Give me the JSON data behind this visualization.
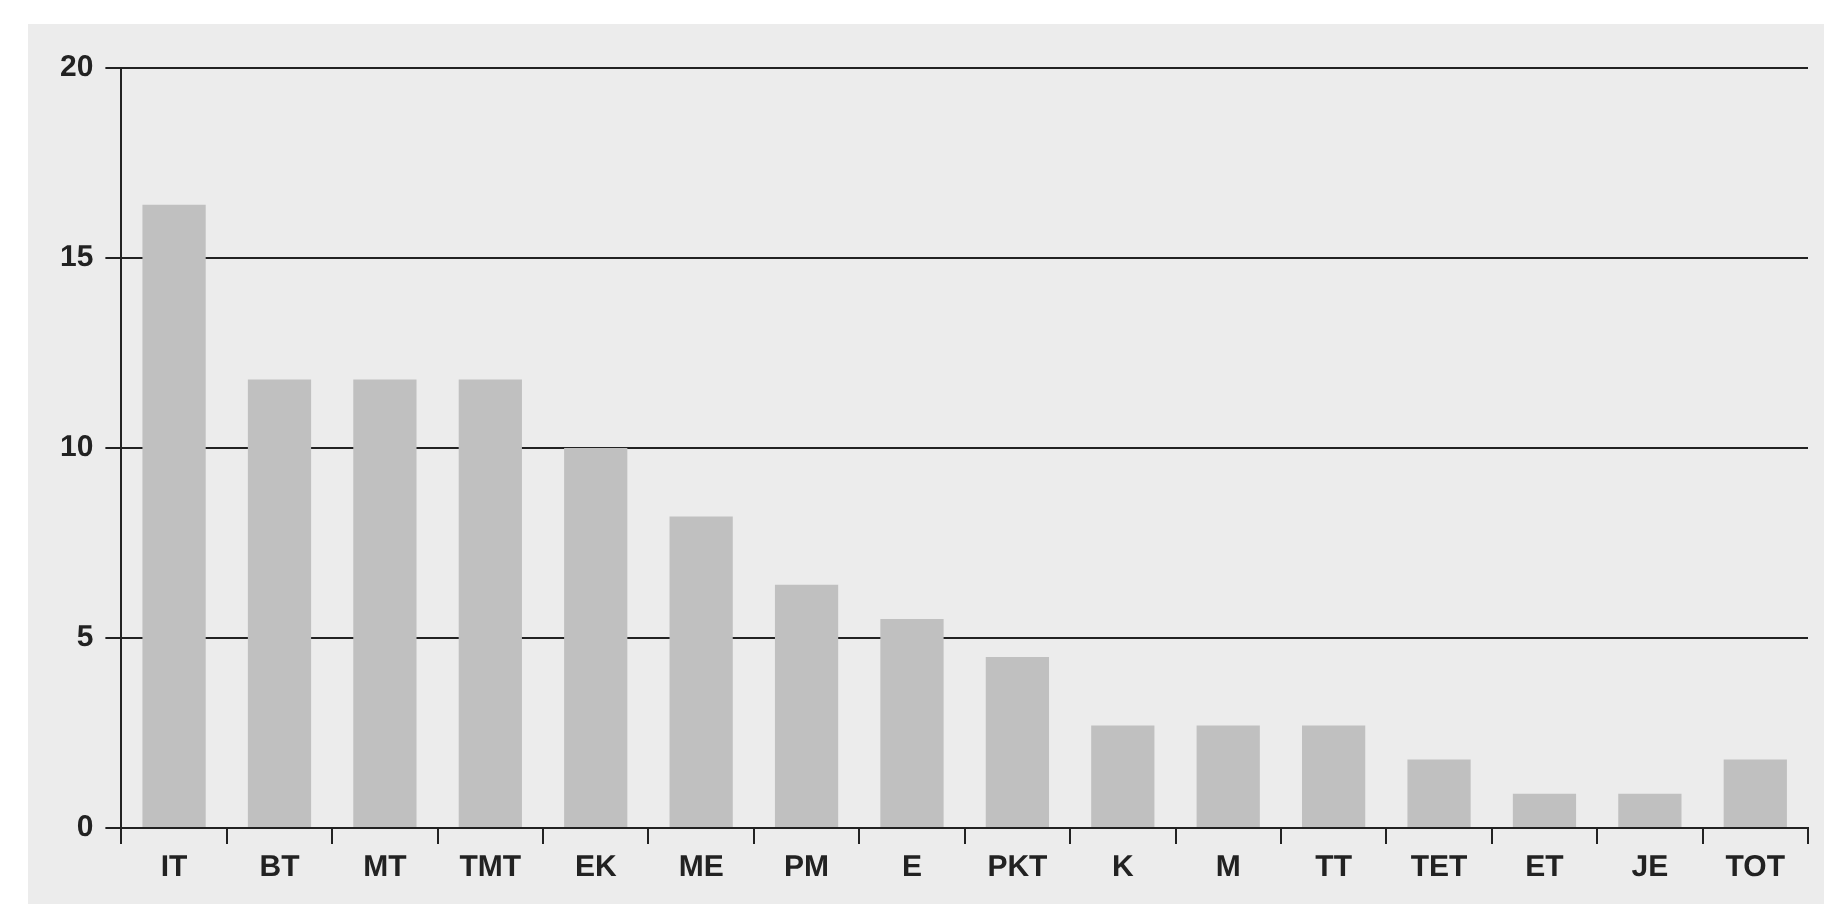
{
  "chart_data": {
    "type": "bar",
    "categories": [
      "IT",
      "BT",
      "MT",
      "TMT",
      "EK",
      "ME",
      "PM",
      "E",
      "PKT",
      "K",
      "M",
      "TT",
      "TET",
      "ET",
      "JE",
      "TOT"
    ],
    "values": [
      16.4,
      11.8,
      11.8,
      11.8,
      10.0,
      8.2,
      6.4,
      5.5,
      4.5,
      2.7,
      2.7,
      2.7,
      1.8,
      0.9,
      0.9,
      1.8
    ],
    "color": "#c0c0c0",
    "ylim": [
      0,
      20
    ],
    "yticks": [
      0,
      5,
      10,
      15,
      20
    ],
    "grid": "y"
  }
}
